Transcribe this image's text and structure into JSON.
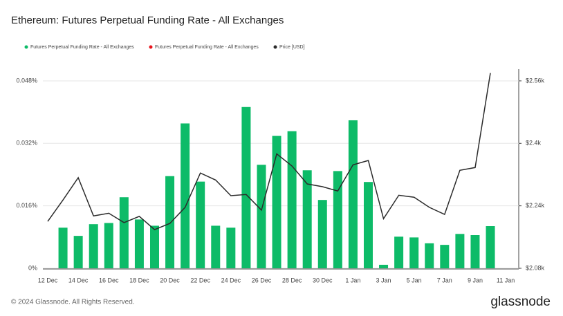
{
  "chart_data": {
    "type": "bar",
    "title": "Ethereum: Futures Perpetual Funding Rate - All Exchanges",
    "categories": [
      "12 Dec",
      null,
      "14 Dec",
      null,
      "16 Dec",
      null,
      "18 Dec",
      null,
      "20 Dec",
      null,
      "22 Dec",
      null,
      "24 Dec",
      null,
      "26 Dec",
      null,
      "28 Dec",
      null,
      "30 Dec",
      null,
      "1 Jan",
      null,
      "3 Jan",
      null,
      "5 Jan",
      null,
      "7 Jan",
      null,
      "9 Jan",
      null,
      "11 Jan"
    ],
    "series": [
      {
        "name": "Futures Perpetual Funding Rate - All Exchanges",
        "color": "#0dbb68",
        "type": "bar",
        "values": [
          null,
          0.0104,
          0.0083,
          0.0113,
          0.0116,
          0.0182,
          0.0125,
          0.0109,
          0.0236,
          0.0371,
          0.0222,
          0.0109,
          0.0104,
          0.0413,
          0.0265,
          0.0339,
          0.0351,
          0.0251,
          0.0175,
          0.0249,
          0.0379,
          0.0221,
          0.0009,
          0.0081,
          0.0079,
          0.0064,
          0.006,
          0.0088,
          0.0085,
          0.0108,
          null
        ]
      },
      {
        "name": "Futures Perpetual Funding Rate - All Exchanges",
        "color": "#e8141c",
        "type": "bar",
        "values": [
          null,
          null,
          null,
          null,
          null,
          null,
          null,
          null,
          null,
          null,
          null,
          null,
          null,
          null,
          null,
          null,
          null,
          null,
          null,
          null,
          null,
          null,
          null,
          null,
          null,
          null,
          null,
          null,
          null,
          null,
          null
        ]
      },
      {
        "name": "Price [USD]",
        "color": "#2b2b2b",
        "type": "line",
        "axis": "y2",
        "values": [
          2200,
          2255,
          2312,
          2214,
          2221,
          2197,
          2213,
          2179,
          2195,
          2236,
          2324,
          2306,
          2266,
          2269,
          2229,
          2373,
          2342,
          2296,
          2289,
          2278,
          2345,
          2356,
          2207,
          2267,
          2262,
          2236,
          2218,
          2331,
          2338,
          2580,
          null
        ]
      }
    ],
    "ylim": [
      0,
      0.051
    ],
    "yticks": [
      {
        "value": 0,
        "label": "0%"
      },
      {
        "value": 0.016,
        "label": "0.016%"
      },
      {
        "value": 0.032,
        "label": "0.032%"
      },
      {
        "value": 0.048,
        "label": "0.048%"
      }
    ],
    "y2lim": [
      2080,
      2590
    ],
    "y2ticks": [
      {
        "value": 2080,
        "label": "$2.08k"
      },
      {
        "value": 2240,
        "label": "$2.24k"
      },
      {
        "value": 2400,
        "label": "$2.4k"
      },
      {
        "value": 2560,
        "label": "$2.56k"
      }
    ],
    "grid": true
  },
  "footer": {
    "copyright": "© 2024 Glassnode. All Rights Reserved.",
    "brand": "glassnode"
  }
}
